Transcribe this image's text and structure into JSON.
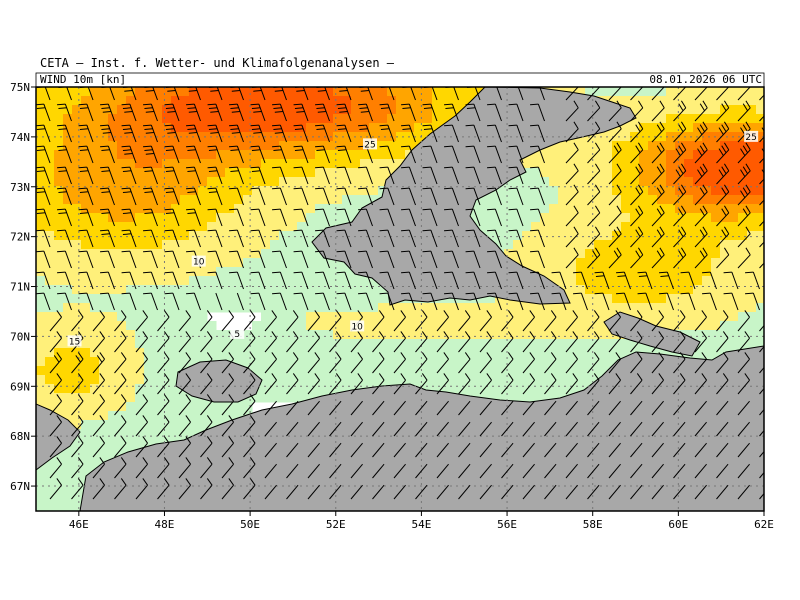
{
  "header": {
    "title": "CETA – Inst. f. Wetter- und Klimafolgenanalysen –",
    "variable": "WIND 10m [kn]",
    "valid_time": "08.01.2026 06 UTC"
  },
  "map": {
    "lon_range": [
      45,
      62
    ],
    "lat_range": [
      66.5,
      75
    ],
    "lon_ticks": [
      "46E",
      "48E",
      "50E",
      "52E",
      "54E",
      "56E",
      "58E",
      "60E",
      "62E"
    ],
    "lat_ticks": [
      "67N",
      "68N",
      "69N",
      "70N",
      "71N",
      "72N",
      "73N",
      "74N",
      "75N"
    ],
    "gridlines": "dotted",
    "land_color": "#a8a8a8",
    "sea_color": "#ffffff",
    "shading_levels": [
      {
        "min": 5,
        "color": "#c8f5c8"
      },
      {
        "min": 10,
        "color": "#fff07a"
      },
      {
        "min": 15,
        "color": "#ffd700"
      },
      {
        "min": 20,
        "color": "#ffa500"
      },
      {
        "min": 25,
        "color": "#ff7f00"
      },
      {
        "min": 30,
        "color": "#ff5a00"
      }
    ],
    "contour_labels": [
      {
        "text": "25",
        "lon": 52.8,
        "lat": 73.85
      },
      {
        "text": "25",
        "lon": 61.7,
        "lat": 74.0
      },
      {
        "text": "10",
        "lon": 48.8,
        "lat": 71.5
      },
      {
        "text": "10",
        "lon": 52.5,
        "lat": 70.2
      },
      {
        "text": "15",
        "lon": 45.9,
        "lat": 69.9
      },
      {
        "text": "5",
        "lon": 49.7,
        "lat": 70.05
      }
    ]
  }
}
